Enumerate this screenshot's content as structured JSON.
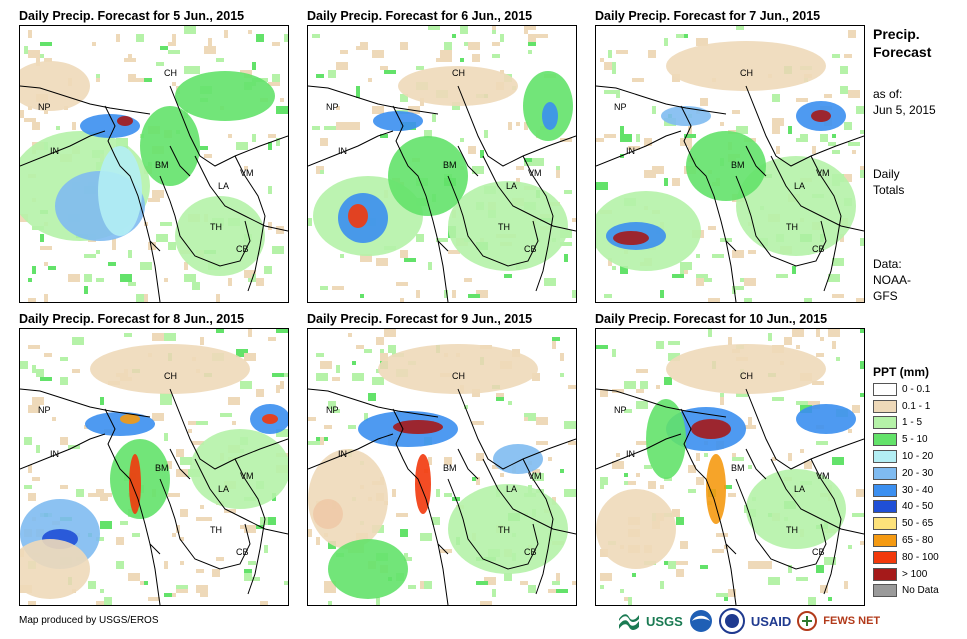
{
  "panels": [
    {
      "title": "Daily Precip. Forecast for 5 Jun., 2015"
    },
    {
      "title": "Daily Precip. Forecast for 6 Jun., 2015"
    },
    {
      "title": "Daily Precip. Forecast for 7 Jun., 2015"
    },
    {
      "title": "Daily Precip. Forecast for 8 Jun., 2015"
    },
    {
      "title": "Daily Precip. Forecast for 9 Jun., 2015"
    },
    {
      "title": "Daily Precip. Forecast for 10 Jun., 2015"
    }
  ],
  "country_labels": {
    "ch": "CH",
    "np": "NP",
    "in": "IN",
    "bm": "BM",
    "la": "LA",
    "vm": "VM",
    "th": "TH",
    "cb": "CB"
  },
  "sidebar": {
    "title_line1": "Precip.",
    "title_line2": "Forecast",
    "asof_line1": "as of:",
    "asof_line2": "Jun 5, 2015",
    "totals_line1": "Daily",
    "totals_line2": "Totals",
    "data_line1": "Data:",
    "data_line2": "NOAA-",
    "data_line3": "GFS"
  },
  "legend": {
    "title": "PPT (mm)",
    "items": [
      {
        "label": "0 - 0.1",
        "color": "#ffffff"
      },
      {
        "label": "0.1 - 1",
        "color": "#eed9b9"
      },
      {
        "label": "1 - 5",
        "color": "#b5f2a8"
      },
      {
        "label": "5 - 10",
        "color": "#63e26a"
      },
      {
        "label": "10 - 20",
        "color": "#b3eef4"
      },
      {
        "label": "20 - 30",
        "color": "#7fbbf1"
      },
      {
        "label": "30 - 40",
        "color": "#3b8ff0"
      },
      {
        "label": "40 - 50",
        "color": "#1f4fd6"
      },
      {
        "label": "50 - 65",
        "color": "#fde27a"
      },
      {
        "label": "65 - 80",
        "color": "#f59a12"
      },
      {
        "label": "80 - 100",
        "color": "#f2390c"
      },
      {
        "label": "> 100",
        "color": "#a51a1a"
      },
      {
        "label": "No Data",
        "color": "#9a9a9a"
      }
    ]
  },
  "credit": "Map produced by USGS/EROS",
  "logos": {
    "usgs": "USGS",
    "usaid": "USAID",
    "fewsnet": "FEWS NET"
  }
}
